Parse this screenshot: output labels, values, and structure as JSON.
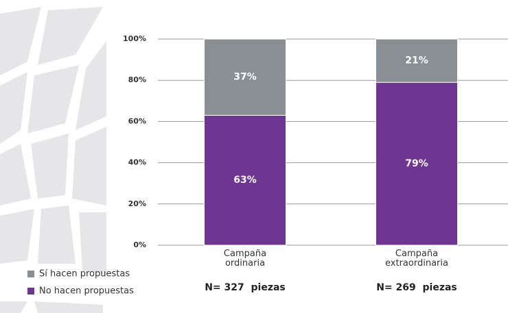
{
  "chart_data": {
    "type": "stacked_bar",
    "categories": [
      "Campaña ordinaria",
      "Campaña extraordinaria"
    ],
    "series": [
      {
        "name": "No hacen propuestas",
        "color": "#6f3593",
        "values": [
          63,
          79
        ],
        "value_labels": [
          "63%",
          "79%"
        ]
      },
      {
        "name": "Sí hacen propuestas",
        "color": "#8a8f94",
        "values": [
          37,
          21
        ],
        "value_labels": [
          "37%",
          "21%"
        ]
      }
    ],
    "annotations": [
      "N= 327  piezas",
      "N= 269  piezas"
    ],
    "ylim": [
      0,
      100
    ],
    "yticks": [
      {
        "value": 0,
        "label": "0%"
      },
      {
        "value": 20,
        "label": "20%"
      },
      {
        "value": 40,
        "label": "40%"
      },
      {
        "value": 60,
        "label": "60%"
      },
      {
        "value": 80,
        "label": "80%"
      },
      {
        "value": 100,
        "label": "100%"
      }
    ],
    "grid": true
  }
}
